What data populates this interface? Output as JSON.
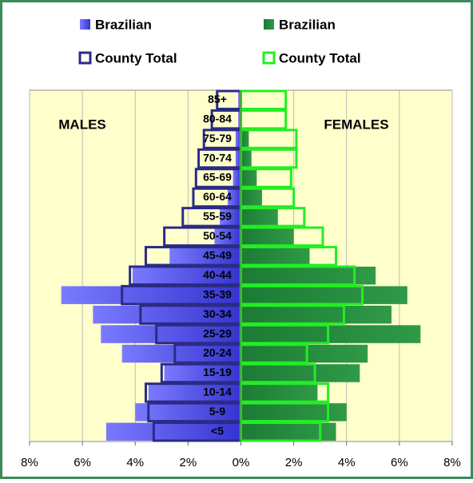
{
  "chart_data": {
    "type": "pyramid",
    "categories": [
      "<5",
      "5-9",
      "10-14",
      "15-19",
      "20-24",
      "25-29",
      "30-34",
      "35-39",
      "40-44",
      "45-49",
      "50-54",
      "55-59",
      "60-64",
      "65-69",
      "70-74",
      "75-79",
      "80-84",
      "85+"
    ],
    "series": [
      {
        "name": "Brazilian",
        "color": "#3b3bd8",
        "style": "fill",
        "values": [
          -5.1,
          -4.0,
          -3.5,
          -2.9,
          -4.5,
          -5.3,
          -5.6,
          -6.8,
          -4.1,
          -2.7,
          -1.0,
          -0.8,
          -0.5,
          -0.3,
          -0.2,
          -0.2,
          -0.1,
          -0.1
        ]
      },
      {
        "name": "County Total",
        "color": "#2b2b85",
        "style": "outline",
        "values": [
          -3.3,
          -3.5,
          -3.6,
          -3.0,
          -2.5,
          -3.2,
          -3.8,
          -4.5,
          -4.2,
          -3.6,
          -2.9,
          -2.2,
          -1.8,
          -1.7,
          -1.6,
          -1.4,
          -1.1,
          -0.9
        ]
      },
      {
        "name": "Brazilian",
        "color": "#20803a",
        "style": "fill",
        "values": [
          3.6,
          4.0,
          2.9,
          4.5,
          4.8,
          6.8,
          5.7,
          6.3,
          5.1,
          2.6,
          2.0,
          1.4,
          0.8,
          0.6,
          0.4,
          0.3,
          0,
          0
        ]
      },
      {
        "name": "County Total",
        "color": "#22ee22",
        "style": "outline",
        "values": [
          3.0,
          3.3,
          3.3,
          2.8,
          2.5,
          3.3,
          3.9,
          4.6,
          4.3,
          3.6,
          3.1,
          2.4,
          2.0,
          1.9,
          2.1,
          2.1,
          1.7,
          1.7
        ]
      }
    ],
    "annotations": [
      "MALES",
      "FEMALES"
    ],
    "xlim": [
      -8,
      8
    ],
    "xticks": [
      {
        "value": -8,
        "label": "8%"
      },
      {
        "value": -6,
        "label": "6%"
      },
      {
        "value": -4,
        "label": "4%"
      },
      {
        "value": -2,
        "label": "2%"
      },
      {
        "value": 0,
        "label": "0%"
      },
      {
        "value": 2,
        "label": "2%"
      },
      {
        "value": 4,
        "label": "4%"
      },
      {
        "value": 6,
        "label": "6%"
      },
      {
        "value": 8,
        "label": "8%"
      }
    ],
    "grid": true
  }
}
